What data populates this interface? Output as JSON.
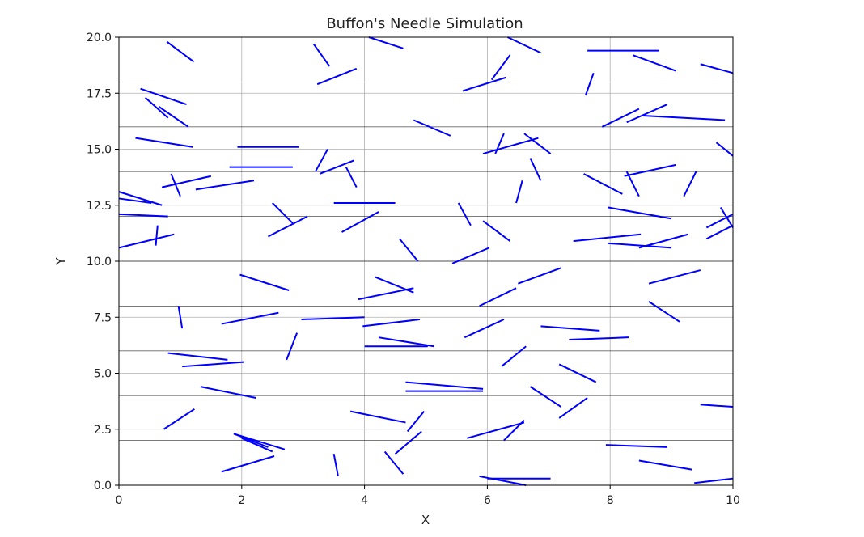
{
  "chart_data": {
    "type": "line",
    "title": "Buffon's Needle Simulation",
    "xlabel": "X",
    "ylabel": "Y",
    "xlim": [
      0,
      10
    ],
    "ylim": [
      0,
      20
    ],
    "xticks": [
      "0",
      "2",
      "4",
      "6",
      "8",
      "10"
    ],
    "yticks": [
      "0.0",
      "2.5",
      "5.0",
      "7.5",
      "10.0",
      "12.5",
      "15.0",
      "17.5",
      "20.0"
    ],
    "grid": true,
    "reference_lines_y": [
      2,
      4,
      6,
      8,
      10,
      12,
      14,
      16,
      18
    ],
    "needle_color": "#0000ff",
    "needles": [
      [
        [
          0.78,
          19.8
        ],
        [
          1.22,
          18.9
        ]
      ],
      [
        [
          3.17,
          19.7
        ],
        [
          3.43,
          18.7
        ]
      ],
      [
        [
          4.07,
          20.0
        ],
        [
          4.63,
          19.5
        ]
      ],
      [
        [
          6.33,
          20.0
        ],
        [
          6.87,
          19.3
        ]
      ],
      [
        [
          7.63,
          19.4
        ],
        [
          8.8,
          19.4
        ]
      ],
      [
        [
          8.37,
          19.2
        ],
        [
          9.07,
          18.5
        ]
      ],
      [
        [
          9.47,
          18.8
        ],
        [
          10.0,
          18.4
        ]
      ],
      [
        [
          6.07,
          18.1
        ],
        [
          6.37,
          19.2
        ]
      ],
      [
        [
          3.23,
          17.9
        ],
        [
          3.87,
          18.6
        ]
      ],
      [
        [
          5.6,
          17.6
        ],
        [
          6.3,
          18.2
        ]
      ],
      [
        [
          7.6,
          17.4
        ],
        [
          7.73,
          18.4
        ]
      ],
      [
        [
          0.35,
          17.7
        ],
        [
          1.1,
          17.0
        ]
      ],
      [
        [
          0.43,
          17.3
        ],
        [
          0.8,
          16.4
        ]
      ],
      [
        [
          0.65,
          16.9
        ],
        [
          1.13,
          16.0
        ]
      ],
      [
        [
          7.87,
          16.0
        ],
        [
          8.47,
          16.8
        ]
      ],
      [
        [
          8.27,
          16.2
        ],
        [
          8.93,
          17.0
        ]
      ],
      [
        [
          8.53,
          16.5
        ],
        [
          9.87,
          16.3
        ]
      ],
      [
        [
          4.8,
          16.3
        ],
        [
          5.4,
          15.6
        ]
      ],
      [
        [
          0.27,
          15.5
        ],
        [
          1.2,
          15.1
        ]
      ],
      [
        [
          1.93,
          15.1
        ],
        [
          2.93,
          15.1
        ]
      ],
      [
        [
          6.27,
          15.7
        ],
        [
          6.13,
          14.8
        ]
      ],
      [
        [
          5.93,
          14.8
        ],
        [
          6.83,
          15.5
        ]
      ],
      [
        [
          6.6,
          15.7
        ],
        [
          7.03,
          14.8
        ]
      ],
      [
        [
          9.73,
          15.3
        ],
        [
          10.0,
          14.7
        ]
      ],
      [
        [
          3.2,
          14.0
        ],
        [
          3.4,
          15.0
        ]
      ],
      [
        [
          3.27,
          13.9
        ],
        [
          3.83,
          14.5
        ]
      ],
      [
        [
          1.8,
          14.2
        ],
        [
          2.83,
          14.2
        ]
      ],
      [
        [
          3.7,
          14.2
        ],
        [
          3.87,
          13.3
        ]
      ],
      [
        [
          6.7,
          14.6
        ],
        [
          6.87,
          13.6
        ]
      ],
      [
        [
          7.57,
          13.9
        ],
        [
          8.2,
          13.0
        ]
      ],
      [
        [
          8.23,
          13.8
        ],
        [
          9.07,
          14.3
        ]
      ],
      [
        [
          8.27,
          14.0
        ],
        [
          8.47,
          12.9
        ]
      ],
      [
        [
          9.2,
          12.9
        ],
        [
          9.4,
          14.0
        ]
      ],
      [
        [
          0.7,
          13.3
        ],
        [
          1.5,
          13.8
        ]
      ],
      [
        [
          0.85,
          13.9
        ],
        [
          1.0,
          12.9
        ]
      ],
      [
        [
          1.25,
          13.2
        ],
        [
          2.2,
          13.6
        ]
      ],
      [
        [
          0.0,
          13.1
        ],
        [
          0.7,
          12.5
        ]
      ],
      [
        [
          0.0,
          12.8
        ],
        [
          0.53,
          12.6
        ]
      ],
      [
        [
          6.57,
          13.6
        ],
        [
          6.47,
          12.6
        ]
      ],
      [
        [
          3.5,
          12.6
        ],
        [
          4.5,
          12.6
        ]
      ],
      [
        [
          2.5,
          12.6
        ],
        [
          2.83,
          11.7
        ]
      ],
      [
        [
          5.53,
          12.6
        ],
        [
          5.73,
          11.6
        ]
      ],
      [
        [
          7.97,
          12.4
        ],
        [
          9.0,
          11.9
        ]
      ],
      [
        [
          9.8,
          12.4
        ],
        [
          10.0,
          11.5
        ]
      ],
      [
        [
          0.0,
          12.1
        ],
        [
          0.8,
          12.0
        ]
      ],
      [
        [
          2.43,
          11.1
        ],
        [
          3.07,
          12.0
        ]
      ],
      [
        [
          3.63,
          11.3
        ],
        [
          4.23,
          12.2
        ]
      ],
      [
        [
          5.93,
          11.8
        ],
        [
          6.37,
          10.9
        ]
      ],
      [
        [
          9.57,
          11.0
        ],
        [
          10.0,
          11.6
        ]
      ],
      [
        [
          9.57,
          11.5
        ],
        [
          10.0,
          12.1
        ]
      ],
      [
        [
          0.63,
          11.6
        ],
        [
          0.6,
          10.7
        ]
      ],
      [
        [
          0.0,
          10.6
        ],
        [
          0.9,
          11.2
        ]
      ],
      [
        [
          7.4,
          10.9
        ],
        [
          8.5,
          11.2
        ]
      ],
      [
        [
          7.97,
          10.8
        ],
        [
          9.0,
          10.6
        ]
      ],
      [
        [
          8.47,
          10.6
        ],
        [
          9.27,
          11.2
        ]
      ],
      [
        [
          4.57,
          11.0
        ],
        [
          4.87,
          10.0
        ]
      ],
      [
        [
          5.43,
          9.9
        ],
        [
          6.03,
          10.6
        ]
      ],
      [
        [
          6.5,
          9.0
        ],
        [
          7.2,
          9.7
        ]
      ],
      [
        [
          8.63,
          9.0
        ],
        [
          9.47,
          9.6
        ]
      ],
      [
        [
          1.97,
          9.4
        ],
        [
          2.77,
          8.7
        ]
      ],
      [
        [
          4.17,
          9.3
        ],
        [
          4.8,
          8.6
        ]
      ],
      [
        [
          3.9,
          8.3
        ],
        [
          4.8,
          8.8
        ]
      ],
      [
        [
          5.87,
          8.0
        ],
        [
          6.47,
          8.8
        ]
      ],
      [
        [
          8.63,
          8.2
        ],
        [
          9.13,
          7.3
        ]
      ],
      [
        [
          0.97,
          8.0
        ],
        [
          1.03,
          7.0
        ]
      ],
      [
        [
          1.67,
          7.2
        ],
        [
          2.6,
          7.7
        ]
      ],
      [
        [
          2.97,
          7.4
        ],
        [
          4.0,
          7.5
        ]
      ],
      [
        [
          3.97,
          7.1
        ],
        [
          4.9,
          7.4
        ]
      ],
      [
        [
          5.63,
          6.6
        ],
        [
          6.27,
          7.4
        ]
      ],
      [
        [
          6.87,
          7.1
        ],
        [
          7.83,
          6.9
        ]
      ],
      [
        [
          7.33,
          6.5
        ],
        [
          8.3,
          6.6
        ]
      ],
      [
        [
          4.23,
          6.6
        ],
        [
          5.13,
          6.2
        ]
      ],
      [
        [
          4.0,
          6.2
        ],
        [
          5.03,
          6.2
        ]
      ],
      [
        [
          2.9,
          6.8
        ],
        [
          2.73,
          5.6
        ]
      ],
      [
        [
          0.8,
          5.9
        ],
        [
          1.77,
          5.6
        ]
      ],
      [
        [
          1.03,
          5.3
        ],
        [
          2.03,
          5.5
        ]
      ],
      [
        [
          6.23,
          5.3
        ],
        [
          6.63,
          6.2
        ]
      ],
      [
        [
          7.17,
          5.4
        ],
        [
          7.77,
          4.6
        ]
      ],
      [
        [
          4.67,
          4.6
        ],
        [
          5.93,
          4.3
        ]
      ],
      [
        [
          4.67,
          4.2
        ],
        [
          5.93,
          4.2
        ]
      ],
      [
        [
          6.7,
          4.4
        ],
        [
          7.2,
          3.5
        ]
      ],
      [
        [
          7.17,
          3.0
        ],
        [
          7.63,
          3.9
        ]
      ],
      [
        [
          1.33,
          4.4
        ],
        [
          2.23,
          3.9
        ]
      ],
      [
        [
          9.47,
          3.6
        ],
        [
          10.0,
          3.5
        ]
      ],
      [
        [
          0.73,
          2.5
        ],
        [
          1.23,
          3.4
        ]
      ],
      [
        [
          3.77,
          3.3
        ],
        [
          4.67,
          2.8
        ]
      ],
      [
        [
          4.7,
          2.4
        ],
        [
          4.97,
          3.3
        ]
      ],
      [
        [
          5.67,
          2.1
        ],
        [
          6.6,
          2.8
        ]
      ],
      [
        [
          6.27,
          2.0
        ],
        [
          6.6,
          2.9
        ]
      ],
      [
        [
          1.87,
          2.3
        ],
        [
          2.43,
          1.7
        ]
      ],
      [
        [
          1.87,
          2.3
        ],
        [
          2.7,
          1.6
        ]
      ],
      [
        [
          2.0,
          2.1
        ],
        [
          2.5,
          1.5
        ]
      ],
      [
        [
          7.93,
          1.8
        ],
        [
          8.93,
          1.7
        ]
      ],
      [
        [
          4.5,
          1.4
        ],
        [
          4.93,
          2.4
        ]
      ],
      [
        [
          1.67,
          0.6
        ],
        [
          2.53,
          1.3
        ]
      ],
      [
        [
          3.5,
          1.4
        ],
        [
          3.57,
          0.4
        ]
      ],
      [
        [
          4.33,
          1.5
        ],
        [
          4.63,
          0.5
        ]
      ],
      [
        [
          8.47,
          1.1
        ],
        [
          9.33,
          0.7
        ]
      ],
      [
        [
          9.37,
          0.1
        ],
        [
          10.0,
          0.3
        ]
      ],
      [
        [
          5.87,
          0.4
        ],
        [
          6.63,
          0.0
        ]
      ],
      [
        [
          6.0,
          0.3
        ],
        [
          7.03,
          0.3
        ]
      ]
    ]
  }
}
